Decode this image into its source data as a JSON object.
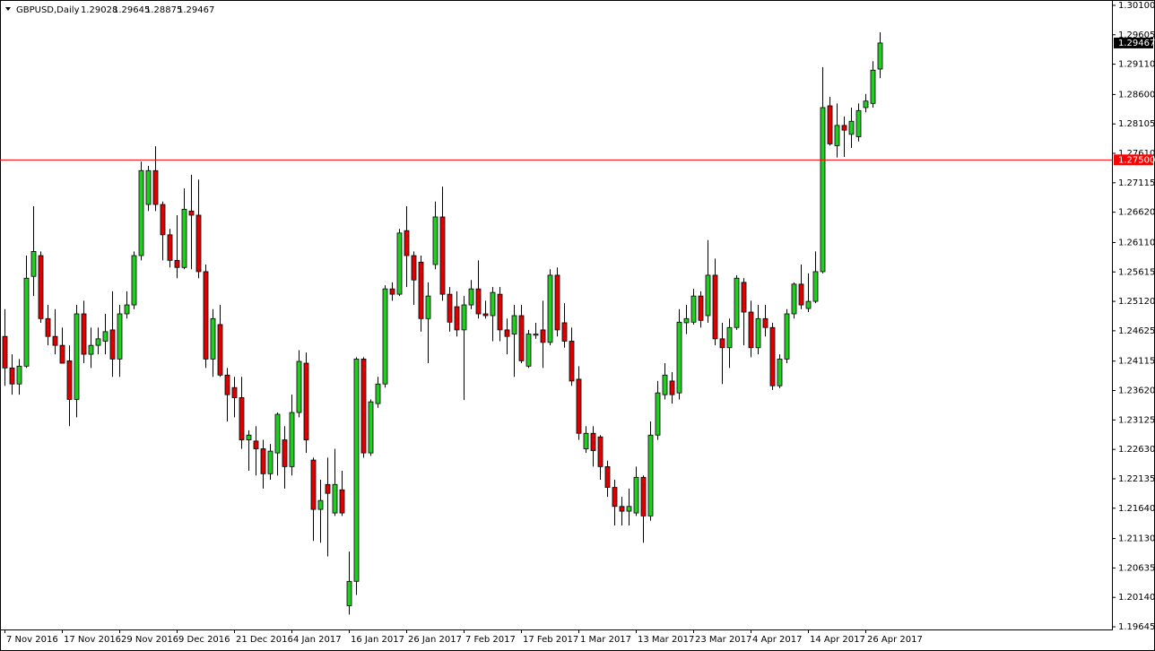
{
  "chart_data": {
    "type": "candlestick",
    "title": "GBPUSD,Daily",
    "up_color": "#22cc22",
    "down_color": "#dd0000",
    "categories": [
      "7 Nov 2016",
      null,
      null,
      null,
      null,
      null,
      null,
      null,
      "17 Nov 2016",
      null,
      null,
      null,
      null,
      null,
      null,
      null,
      "29 Nov 2016",
      null,
      null,
      null,
      null,
      null,
      null,
      null,
      "9 Dec 2016",
      null,
      null,
      null,
      null,
      null,
      null,
      null,
      "21 Dec 2016",
      null,
      null,
      null,
      null,
      null,
      null,
      null,
      "4 Jan 2017",
      null,
      null,
      null,
      null,
      null,
      null,
      null,
      "16 Jan 2017",
      null,
      null,
      null,
      null,
      null,
      null,
      null,
      "26 Jan 2017",
      null,
      null,
      null,
      null,
      null,
      null,
      null,
      "7 Feb 2017",
      null,
      null,
      null,
      null,
      null,
      null,
      null,
      "17 Feb 2017",
      null,
      null,
      null,
      null,
      null,
      null,
      null,
      "1 Mar 2017",
      null,
      null,
      null,
      null,
      null,
      null,
      null,
      "13 Mar 2017",
      null,
      null,
      null,
      null,
      null,
      null,
      null,
      "23 Mar 2017",
      null,
      null,
      null,
      null,
      null,
      null,
      null,
      "4 Apr 2017",
      null,
      null,
      null,
      null,
      null,
      null,
      null,
      "14 Apr 2017",
      null,
      null,
      null,
      null,
      null,
      null,
      null,
      "26 Apr 2017",
      null,
      null
    ],
    "open": [
      1.2453,
      1.24,
      1.2373,
      1.2403,
      1.2554,
      1.2589,
      1.2483,
      1.2453,
      1.2438,
      1.2412,
      1.2347,
      1.2491,
      1.2423,
      1.2438,
      1.2445,
      1.2464,
      1.2415,
      1.2491,
      1.2506,
      1.2589,
      1.2675,
      1.2732,
      1.2675,
      1.2624,
      1.2581,
      1.2569,
      1.2664,
      1.2657,
      1.2562,
      1.2415,
      1.2473,
      1.2388,
      1.2367,
      1.235,
      1.2279,
      1.2277,
      1.2264,
      1.2222,
      1.2257,
      1.2279,
      1.2234,
      1.2325,
      1.2408,
      1.2245,
      1.2162,
      1.2204,
      1.2156,
      1.2195,
      1.2,
      1.2041,
      1.2415,
      1.2257,
      1.234,
      1.2373,
      1.2533,
      1.2524,
      1.2631,
      1.2589,
      1.2578,
      1.2483,
      1.2574,
      1.2654,
      1.2524,
      1.2503,
      1.2464,
      1.2506,
      1.2533,
      1.2491,
      1.2488,
      1.2524,
      1.2464,
      1.2457,
      1.2488,
      1.2403,
      1.2455,
      1.2464,
      1.2443,
      1.2556,
      1.2476,
      1.2445,
      1.2381,
      1.2264,
      1.229,
      1.2284,
      1.2234,
      1.2199,
      1.2167,
      1.2159,
      1.2156,
      1.2216,
      1.2151,
      1.2287,
      1.2355,
      1.2378,
      1.2358,
      1.2476,
      1.2477,
      1.2521,
      1.2488,
      1.2556,
      1.2449,
      1.2434,
      1.2468,
      1.2544,
      1.2494,
      1.2434,
      1.2483,
      1.2468,
      1.237,
      1.2415,
      1.2491,
      1.2541,
      1.25,
      1.2512,
      1.2562,
      1.2841,
      1.2774,
      1.2808,
      1.2793,
      1.2789,
      1.2838,
      1.2845,
      1.29028
    ],
    "high": [
      1.2499,
      1.2423,
      1.2415,
      1.2589,
      1.2672,
      1.2596,
      1.2506,
      1.2499,
      1.2468,
      1.2438,
      1.2506,
      1.2513,
      1.2468,
      1.2468,
      1.2491,
      1.2529,
      1.2506,
      1.2529,
      1.2596,
      1.2747,
      1.274,
      1.2773,
      1.268,
      1.2634,
      1.2657,
      1.2702,
      1.2725,
      1.2717,
      1.2574,
      1.2499,
      1.2506,
      1.24,
      1.2385,
      1.2385,
      1.2295,
      1.2302,
      1.2279,
      1.2272,
      1.2325,
      1.2302,
      1.2355,
      1.243,
      1.2426,
      1.2249,
      1.2212,
      1.2249,
      1.2264,
      1.2227,
      1.2091,
      1.2418,
      1.2418,
      1.2347,
      1.2385,
      1.2539,
      1.2544,
      1.2634,
      1.2672,
      1.2596,
      1.2589,
      1.2544,
      1.268,
      1.2705,
      1.2536,
      1.2529,
      1.2521,
      1.2548,
      1.2581,
      1.2513,
      1.2536,
      1.2536,
      1.2483,
      1.2506,
      1.2506,
      1.2464,
      1.2476,
      1.2513,
      1.2566,
      1.2569,
      1.2509,
      1.2468,
      1.2403,
      1.2302,
      1.2302,
      1.2287,
      1.2244,
      1.2212,
      1.2183,
      1.2197,
      1.2234,
      1.2219,
      1.231,
      1.2378,
      1.2408,
      1.2393,
      1.2499,
      1.2506,
      1.2533,
      1.2529,
      1.2615,
      1.2584,
      1.2476,
      1.2483,
      1.2556,
      1.2551,
      1.2513,
      1.2506,
      1.2506,
      1.2476,
      1.2423,
      1.2499,
      1.2544,
      1.2574,
      1.2559,
      1.2596,
      1.2906,
      1.2856,
      1.2845,
      1.2823,
      1.2838,
      1.2845,
      1.2861,
      1.2916,
      1.29645
    ],
    "low": [
      1.237,
      1.2355,
      1.2355,
      1.24,
      1.2521,
      1.2476,
      1.2438,
      1.2423,
      1.2408,
      1.2302,
      1.2317,
      1.2408,
      1.24,
      1.2423,
      1.2423,
      1.2385,
      1.2385,
      1.2483,
      1.2499,
      1.2581,
      1.2664,
      1.2664,
      1.2581,
      1.2569,
      1.2551,
      1.2566,
      1.2566,
      1.2551,
      1.24,
      1.2385,
      1.2385,
      1.231,
      1.2317,
      1.2264,
      1.2227,
      1.2219,
      1.2197,
      1.2212,
      1.2219,
      1.2197,
      1.2219,
      1.2317,
      1.2257,
      1.2109,
      1.2106,
      1.2083,
      1.2151,
      1.2151,
      1.1985,
      1.2018,
      1.2249,
      1.2252,
      1.2333,
      1.2367,
      1.2513,
      1.2521,
      1.2536,
      1.2506,
      1.2461,
      1.2408,
      1.2566,
      1.2513,
      1.2461,
      1.2453,
      1.2346,
      1.2499,
      1.2483,
      1.2483,
      1.2445,
      1.2445,
      1.2423,
      1.2385,
      1.2408,
      1.24,
      1.2449,
      1.24,
      1.2438,
      1.2453,
      1.2434,
      1.237,
      1.2279,
      1.2257,
      1.2234,
      1.2212,
      1.2183,
      1.2135,
      1.2135,
      1.2135,
      1.2151,
      1.2106,
      1.2143,
      1.2279,
      1.2347,
      1.234,
      1.2347,
      1.2457,
      1.2473,
      1.2468,
      1.2476,
      1.2438,
      1.2373,
      1.24,
      1.2464,
      1.2438,
      1.2418,
      1.2423,
      1.2453,
      1.2363,
      1.2366,
      1.2408,
      1.2483,
      1.2499,
      1.2494,
      1.2509,
      1.2559,
      1.2774,
      1.2754,
      1.2755,
      1.277,
      1.2781,
      1.283,
      1.2838,
      1.28875
    ],
    "close": [
      1.24,
      1.2373,
      1.2403,
      1.2551,
      1.2596,
      1.2483,
      1.2453,
      1.2438,
      1.2408,
      1.2347,
      1.2491,
      1.2423,
      1.2438,
      1.2449,
      1.2461,
      1.2415,
      1.2491,
      1.2506,
      1.2589,
      1.2732,
      1.2732,
      1.2675,
      1.2624,
      1.2581,
      1.2569,
      1.2667,
      1.2657,
      1.2562,
      1.2415,
      1.2483,
      1.2388,
      1.2355,
      1.235,
      1.2279,
      1.2287,
      1.2264,
      1.2222,
      1.226,
      1.2322,
      1.2234,
      1.2325,
      1.2411,
      1.2279,
      1.2162,
      1.2177,
      1.2189,
      1.2204,
      1.2156,
      1.2041,
      1.2415,
      1.2257,
      1.2343,
      1.2373,
      1.2533,
      1.2524,
      1.2627,
      1.2589,
      1.2548,
      1.2483,
      1.2521,
      1.2654,
      1.2524,
      1.2477,
      1.2464,
      1.2506,
      1.2533,
      1.2491,
      1.2488,
      1.2527,
      1.2464,
      1.2453,
      1.2488,
      1.2412,
      1.2457,
      1.2457,
      1.2443,
      1.2556,
      1.2464,
      1.2445,
      1.2378,
      1.229,
      1.229,
      1.2261,
      1.2234,
      1.2199,
      1.2167,
      1.2159,
      1.2167,
      1.2216,
      1.2151,
      1.2287,
      1.2358,
      1.2388,
      1.2355,
      1.2477,
      1.2483,
      1.2521,
      1.248,
      1.2556,
      1.2449,
      1.2434,
      1.2468,
      1.2551,
      1.2494,
      1.2434,
      1.2483,
      1.2468,
      1.237,
      1.2415,
      1.2491,
      1.2541,
      1.2506,
      1.2512,
      1.2562,
      1.2838,
      1.2777,
      1.2808,
      1.28,
      1.2815,
      1.2833,
      1.2849,
      1.2901,
      1.29467
    ],
    "ylim": [
      1.196,
      1.3019
    ],
    "yticks": [
      {
        "value": 1.301,
        "label": "1.30100"
      },
      1.29605,
      {
        "value": 1.2911,
        "label": "1.29110"
      },
      {
        "value": 1.286,
        "label": "1.28600"
      },
      1.28105,
      {
        "value": 1.2761,
        "label": "1.27610"
      },
      1.27115,
      {
        "value": 1.2662,
        "label": "1.26620"
      },
      {
        "value": 1.2611,
        "label": "1.26110"
      },
      1.25615,
      {
        "value": 1.2512,
        "label": "1.25120"
      },
      1.24625,
      1.24115,
      {
        "value": 1.2362,
        "label": "1.23620"
      },
      1.23125,
      {
        "value": 1.2263,
        "label": "1.22630"
      },
      1.22135,
      {
        "value": 1.2164,
        "label": "1.21640"
      },
      {
        "value": 1.2113,
        "label": "1.21130"
      },
      1.20635,
      {
        "value": 1.2014,
        "label": "1.20140"
      },
      1.19645
    ],
    "hlines": [
      {
        "value": 1.275,
        "label": "1.27500",
        "color": "#ff0000"
      }
    ]
  }
}
